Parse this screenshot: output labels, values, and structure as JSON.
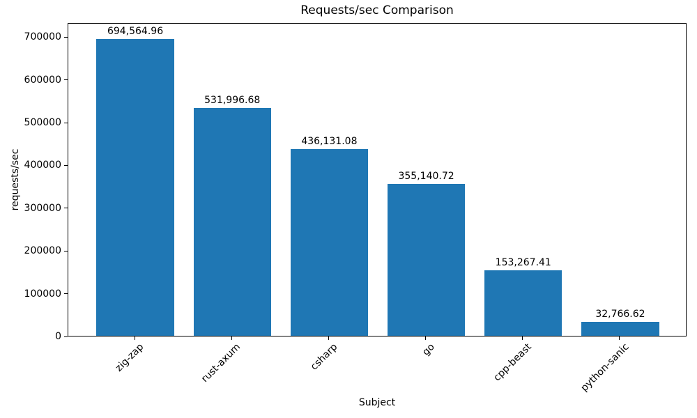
{
  "chart_data": {
    "type": "bar",
    "title": "Requests/sec Comparison",
    "xlabel": "Subject",
    "ylabel": "requests/sec",
    "categories": [
      "zig-zap",
      "rust-axum",
      "csharp",
      "go",
      "cpp-beast",
      "python-sanic"
    ],
    "values": [
      694564.96,
      531996.68,
      436131.08,
      355140.72,
      153267.41,
      32766.62
    ],
    "value_labels": [
      "694,564.96",
      "531,996.68",
      "436,131.08",
      "355,140.72",
      "153,267.41",
      "32,766.62"
    ],
    "yticks": [
      0,
      100000,
      200000,
      300000,
      400000,
      500000,
      600000,
      700000
    ],
    "ytick_labels": [
      "0",
      "100000",
      "200000",
      "300000",
      "400000",
      "500000",
      "600000",
      "700000"
    ],
    "ylim": [
      0,
      733000
    ],
    "bar_color": "#1f77b4",
    "axis_color": "#000000",
    "text_color": "#000000",
    "grid": false,
    "x_tick_rotation_deg": 45,
    "legend": "none"
  }
}
